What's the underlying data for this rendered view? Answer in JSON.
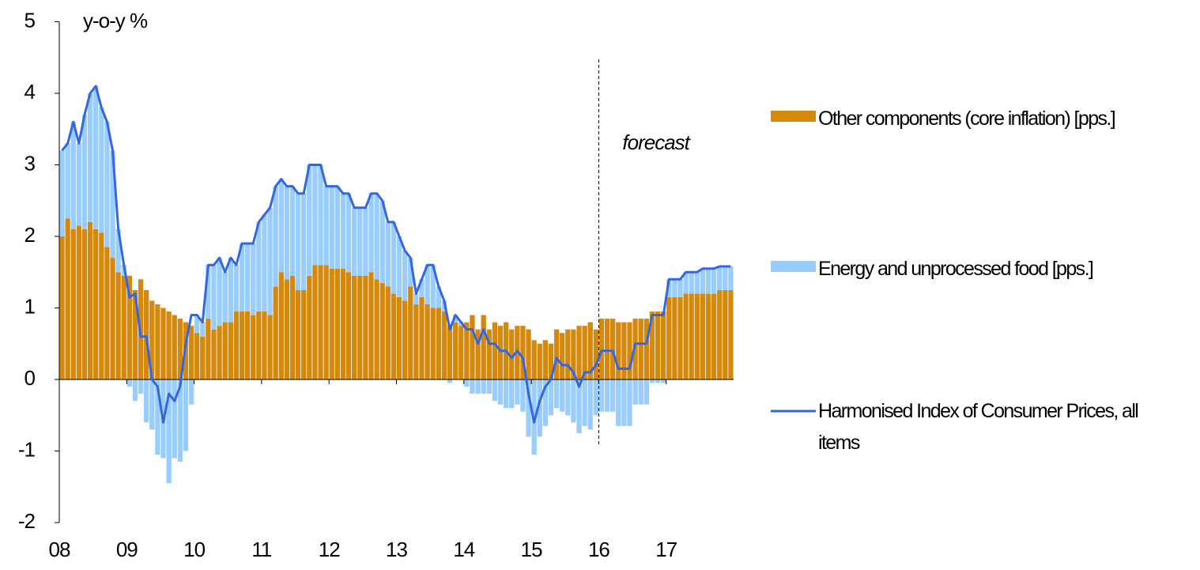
{
  "chart_data": {
    "type": "bar",
    "y_label": "y-o-y %",
    "categories": [
      "08",
      null,
      null,
      null,
      null,
      null,
      null,
      null,
      null,
      null,
      null,
      null,
      "09",
      null,
      null,
      null,
      null,
      null,
      null,
      null,
      null,
      null,
      null,
      null,
      "10",
      null,
      null,
      null,
      null,
      null,
      null,
      null,
      null,
      null,
      null,
      null,
      "11",
      null,
      null,
      null,
      null,
      null,
      null,
      null,
      null,
      null,
      null,
      null,
      "12",
      null,
      null,
      null,
      null,
      null,
      null,
      null,
      null,
      null,
      null,
      null,
      "13",
      null,
      null,
      null,
      null,
      null,
      null,
      null,
      null,
      null,
      null,
      null,
      "14",
      null,
      null,
      null,
      null,
      null,
      null,
      null,
      null,
      null,
      null,
      null,
      "15",
      null,
      null,
      null,
      null,
      null,
      null,
      null,
      null,
      null,
      null,
      null,
      "16",
      null,
      null,
      null,
      null,
      null,
      null,
      null,
      null,
      null,
      null,
      null,
      "17",
      null,
      null,
      null,
      null,
      null,
      null,
      null,
      null,
      null,
      null,
      null
    ],
    "series": [
      {
        "name": "Other components (core inflation) [pps.]",
        "type": "bar",
        "color": "#d4890d",
        "values": [
          2.0,
          2.25,
          2.1,
          2.15,
          2.1,
          2.2,
          2.1,
          2.05,
          1.85,
          1.7,
          1.5,
          1.45,
          1.45,
          1.25,
          1.4,
          1.25,
          1.1,
          1.05,
          1.0,
          0.95,
          0.9,
          0.85,
          0.8,
          0.75,
          0.65,
          0.6,
          0.85,
          0.7,
          0.75,
          0.8,
          0.8,
          0.95,
          0.95,
          0.95,
          0.9,
          0.95,
          0.95,
          0.9,
          1.3,
          1.5,
          1.4,
          1.45,
          1.25,
          1.25,
          1.45,
          1.6,
          1.6,
          1.6,
          1.55,
          1.55,
          1.55,
          1.5,
          1.45,
          1.45,
          1.45,
          1.5,
          1.4,
          1.35,
          1.3,
          1.2,
          1.15,
          1.1,
          1.3,
          1.05,
          1.15,
          1.05,
          1.0,
          1.0,
          0.95,
          0.75,
          0.8,
          0.75,
          0.8,
          0.9,
          0.7,
          0.9,
          0.7,
          0.8,
          0.75,
          0.8,
          0.7,
          0.75,
          0.75,
          0.7,
          0.55,
          0.5,
          0.55,
          0.5,
          0.7,
          0.65,
          0.7,
          0.7,
          0.75,
          0.75,
          0.8,
          0.7,
          0.85,
          0.85,
          0.85,
          0.8,
          0.8,
          0.8,
          0.85,
          0.85,
          0.85,
          0.95,
          0.95,
          0.95,
          1.15,
          1.15,
          1.15,
          1.2,
          1.2,
          1.2,
          1.2,
          1.2,
          1.2,
          1.25,
          1.25,
          1.25
        ]
      },
      {
        "name": "Energy and unprocessed food [pps.]",
        "type": "bar",
        "color": "#99ccff",
        "values": [
          1.2,
          1.05,
          1.5,
          1.15,
          1.6,
          1.8,
          2.0,
          1.75,
          1.75,
          1.5,
          0.6,
          0.15,
          -0.1,
          -0.3,
          -0.2,
          -0.6,
          -0.7,
          -1.05,
          -1.1,
          -1.45,
          -1.1,
          -1.15,
          -1.0,
          -0.35,
          0.25,
          0.2,
          0.75,
          0.9,
          0.95,
          0.7,
          0.9,
          0.65,
          0.95,
          0.95,
          1.0,
          1.25,
          1.35,
          1.5,
          1.4,
          1.3,
          1.3,
          1.25,
          1.35,
          1.35,
          1.55,
          1.4,
          1.4,
          1.1,
          1.15,
          1.15,
          1.05,
          1.1,
          0.95,
          0.95,
          0.95,
          1.1,
          1.2,
          1.15,
          0.9,
          1.0,
          0.85,
          0.7,
          0.4,
          0.15,
          0.25,
          0.55,
          0.6,
          0.3,
          0.15,
          -0.05,
          0.1,
          0.05,
          -0.1,
          -0.2,
          -0.2,
          -0.2,
          -0.2,
          -0.3,
          -0.35,
          -0.4,
          -0.4,
          -0.35,
          -0.45,
          -0.8,
          -1.05,
          -0.8,
          -0.65,
          -0.5,
          -0.4,
          -0.45,
          -0.5,
          -0.6,
          -0.75,
          -0.65,
          -0.7,
          -0.5,
          -0.45,
          -0.45,
          -0.45,
          -0.65,
          -0.65,
          -0.65,
          -0.35,
          -0.35,
          -0.35,
          -0.05,
          -0.05,
          -0.05,
          0.25,
          0.25,
          0.25,
          0.3,
          0.3,
          0.3,
          0.35,
          0.35,
          0.35,
          0.33,
          0.33,
          0.33
        ]
      },
      {
        "name": "Harmonised Index of Consumer Prices, all items",
        "type": "line",
        "color": "#3366e6",
        "values": [
          3.2,
          3.3,
          3.6,
          3.3,
          3.7,
          4.0,
          4.1,
          3.8,
          3.6,
          3.2,
          2.1,
          1.6,
          1.15,
          1.2,
          0.6,
          0.6,
          0.0,
          -0.1,
          -0.6,
          -0.2,
          -0.3,
          -0.1,
          0.5,
          0.9,
          0.9,
          0.8,
          1.6,
          1.6,
          1.7,
          1.5,
          1.7,
          1.6,
          1.9,
          1.9,
          1.9,
          2.2,
          2.3,
          2.4,
          2.7,
          2.8,
          2.7,
          2.7,
          2.6,
          2.6,
          3.0,
          3.0,
          3.0,
          2.7,
          2.7,
          2.7,
          2.6,
          2.6,
          2.4,
          2.4,
          2.4,
          2.6,
          2.6,
          2.5,
          2.2,
          2.2,
          2.0,
          1.8,
          1.7,
          1.2,
          1.4,
          1.6,
          1.6,
          1.3,
          1.1,
          0.7,
          0.9,
          0.8,
          0.7,
          0.7,
          0.5,
          0.7,
          0.5,
          0.5,
          0.4,
          0.4,
          0.3,
          0.4,
          0.3,
          -0.2,
          -0.6,
          -0.3,
          -0.1,
          0.0,
          0.3,
          0.2,
          0.2,
          0.1,
          -0.1,
          0.1,
          0.1,
          0.2,
          0.4,
          0.4,
          0.4,
          0.15,
          0.15,
          0.15,
          0.5,
          0.5,
          0.5,
          0.9,
          0.9,
          0.9,
          1.4,
          1.4,
          1.4,
          1.5,
          1.5,
          1.5,
          1.55,
          1.55,
          1.55,
          1.58,
          1.58,
          1.58
        ]
      }
    ],
    "ylim": [
      -2,
      5
    ],
    "yticks": [
      -2,
      -1,
      0,
      1,
      2,
      3,
      4,
      5
    ],
    "annotation": {
      "text": "forecast",
      "category": "16"
    },
    "legend": "right"
  }
}
